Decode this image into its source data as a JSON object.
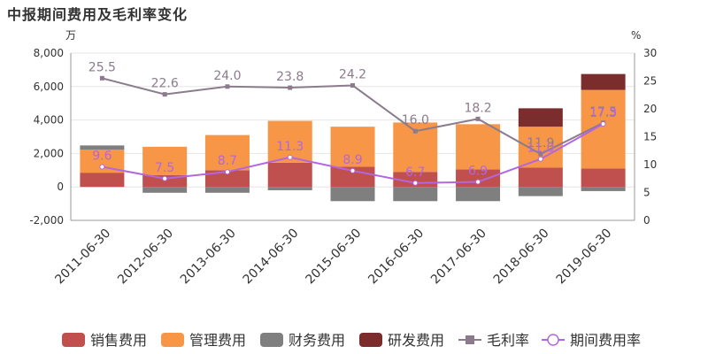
{
  "chart_data": {
    "type": "bar",
    "title": "中报期间费用及毛利率变化",
    "y_left_unit": "万",
    "y_right_unit": "%",
    "categories": [
      "2011-06-30",
      "2012-06-30",
      "2013-06-30",
      "2014-06-30",
      "2015-06-30",
      "2016-06-30",
      "2017-06-30",
      "2018-06-30",
      "2019-06-30"
    ],
    "ylim_left": [
      -2000,
      8000
    ],
    "yticks_left": [
      -2000,
      0,
      2000,
      4000,
      6000,
      8000
    ],
    "yticks_left_labels": [
      "-2,000",
      "0",
      "2,000",
      "4,000",
      "6,000",
      "8,000"
    ],
    "ylim_right": [
      0,
      30
    ],
    "yticks_right": [
      0,
      5,
      10,
      15,
      20,
      25,
      30
    ],
    "yticks_right_labels": [
      "0",
      "5",
      "10",
      "15",
      "20",
      "25",
      "30"
    ],
    "stacked": true,
    "series": [
      {
        "name": "销售费用",
        "kind": "bar",
        "color": "#c0504d",
        "values": [
          850,
          700,
          1000,
          1450,
          1200,
          900,
          1050,
          1150,
          1100
        ]
      },
      {
        "name": "管理费用",
        "kind": "bar",
        "color": "#f79646",
        "values": [
          1380,
          1700,
          2100,
          2500,
          2400,
          2950,
          2700,
          2450,
          4700
        ]
      },
      {
        "name": "财务费用",
        "kind": "bar",
        "color": "#7f7f7f",
        "values": [
          250,
          -350,
          -350,
          -200,
          -850,
          -850,
          -850,
          -550,
          -250
        ]
      },
      {
        "name": "研发费用",
        "kind": "bar",
        "color": "#7b2c2c",
        "values": [
          0,
          0,
          0,
          0,
          0,
          0,
          0,
          1100,
          950
        ]
      },
      {
        "name": "毛利率",
        "kind": "line",
        "axis": "right",
        "color": "#8c7b8c",
        "values": [
          25.5,
          22.6,
          24.0,
          23.8,
          24.2,
          16.0,
          18.2,
          11.9,
          17.5
        ],
        "labels": [
          "25.5",
          "22.6",
          "24.0",
          "23.8",
          "24.2",
          "16.0",
          "18.2",
          "11.9",
          "17.5"
        ]
      },
      {
        "name": "期间费用率",
        "kind": "line",
        "axis": "right",
        "color": "#b266e0",
        "values": [
          9.6,
          7.5,
          8.7,
          11.3,
          8.9,
          6.7,
          6.9,
          11.0,
          17.3
        ],
        "labels": [
          "9.6",
          "7.5",
          "8.7",
          "11.3",
          "8.9",
          "6.7",
          "6.9",
          "11.0",
          "17.3"
        ]
      }
    ]
  }
}
